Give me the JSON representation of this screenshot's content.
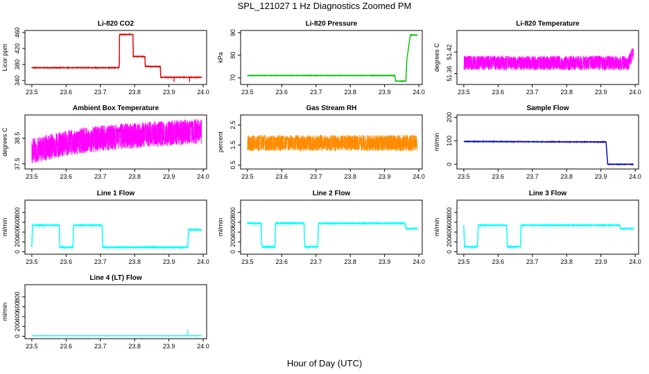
{
  "figure": {
    "title": "SPL_121027  1 Hz Diagnostics Zoomed PM",
    "xlabel": "Hour of Day (UTC)"
  },
  "chart_data": [
    {
      "type": "line",
      "title": "Li-820 CO2",
      "ylabel": "Licor ppm",
      "color": "#e00000",
      "xlim": [
        23.48,
        24.01
      ],
      "ylim": [
        330,
        465
      ],
      "xticks": [
        "23.5",
        "23.6",
        "23.7",
        "23.8",
        "23.9",
        "24.0"
      ],
      "yticks": [
        "340",
        "380",
        "420",
        "460"
      ],
      "series": [
        {
          "name": "CO2",
          "x": [
            23.5,
            23.755,
            23.756,
            23.795,
            23.796,
            23.83,
            23.831,
            23.875,
            23.876,
            23.995
          ],
          "y": [
            372,
            372,
            455,
            455,
            400,
            400,
            375,
            375,
            348,
            348
          ],
          "noise": 1,
          "spikes": [
            [
              23.915,
              336
            ],
            [
              23.96,
              336
            ]
          ]
        }
      ]
    },
    {
      "type": "line",
      "title": "Li-820 Pressure",
      "ylabel": "kPa",
      "color": "#00c800",
      "xlim": [
        23.48,
        24.01
      ],
      "ylim": [
        67,
        91
      ],
      "xticks": [
        "23.5",
        "23.6",
        "23.7",
        "23.8",
        "23.9",
        "24.0"
      ],
      "yticks": [
        "70",
        "80",
        "90"
      ],
      "series": [
        {
          "name": "Pressure",
          "x": [
            23.5,
            23.93,
            23.932,
            23.962,
            23.965,
            23.975,
            23.995
          ],
          "y": [
            71,
            71,
            68.5,
            68.5,
            78,
            89,
            89
          ],
          "noise": 0.15
        }
      ]
    },
    {
      "type": "line",
      "title": "Li-820 Temperature",
      "ylabel": "degrees C",
      "color": "#ff00ff",
      "xlim": [
        23.48,
        24.01
      ],
      "ylim": [
        51.33,
        51.48
      ],
      "xticks": [
        "23.5",
        "23.6",
        "23.7",
        "23.8",
        "23.9",
        "24.0"
      ],
      "yticks": [
        "51.36",
        "51.42"
      ],
      "series": [
        {
          "name": "Temperature",
          "x": [
            23.5,
            23.98,
            23.995
          ],
          "y": [
            51.39,
            51.39,
            51.42
          ],
          "noise": 0.02,
          "style": "dense"
        }
      ]
    },
    {
      "type": "line",
      "title": "Ambient Box Temperature",
      "ylabel": "degrees C",
      "color": "#ff00ff",
      "xlim": [
        23.48,
        24.01
      ],
      "ylim": [
        37.3,
        39.4
      ],
      "xticks": [
        "23.5",
        "23.6",
        "23.7",
        "23.8",
        "23.9",
        "24.0"
      ],
      "yticks": [
        "37.5",
        "38.5"
      ],
      "series": [
        {
          "name": "Ambient Temp",
          "x": [
            23.5,
            23.6,
            23.7,
            23.8,
            23.9,
            23.995
          ],
          "y": [
            38.0,
            38.3,
            38.5,
            38.6,
            38.7,
            38.75
          ],
          "noise": 0.5,
          "style": "dense"
        }
      ]
    },
    {
      "type": "line",
      "title": "Gas Stream RH",
      "ylabel": "percent",
      "color": "#ff8c00",
      "xlim": [
        23.48,
        24.01
      ],
      "ylim": [
        0.3,
        3.0
      ],
      "xticks": [
        "23.5",
        "23.6",
        "23.7",
        "23.8",
        "23.9",
        "24.0"
      ],
      "yticks": [
        "0.5",
        "1.5",
        "2.5"
      ],
      "series": [
        {
          "name": "RH",
          "x": [
            23.5,
            23.995
          ],
          "y": [
            1.6,
            1.6
          ],
          "noise": 0.4,
          "style": "dense"
        }
      ]
    },
    {
      "type": "line",
      "title": "Sample Flow",
      "ylabel": "ml/min",
      "color": "#0000cd",
      "xlim": [
        23.48,
        24.01
      ],
      "ylim": [
        -20,
        210
      ],
      "xticks": [
        "23.5",
        "23.6",
        "23.7",
        "23.8",
        "23.9",
        "24.0"
      ],
      "yticks": [
        "0",
        "100",
        "200"
      ],
      "series": [
        {
          "name": "Sample Flow",
          "x": [
            23.5,
            23.915,
            23.92,
            23.995
          ],
          "y": [
            97,
            95,
            0,
            0
          ],
          "noise": 1.5
        }
      ]
    },
    {
      "type": "line",
      "title": "Line 1 Flow",
      "ylabel": "ml/min",
      "color": "#00ffff",
      "xlim": [
        23.48,
        24.01
      ],
      "ylim": [
        -50,
        1050
      ],
      "xticks": [
        "23.5",
        "23.6",
        "23.7",
        "23.8",
        "23.9",
        "24.0"
      ],
      "yticks": [
        "0",
        "200",
        "400",
        "600",
        "800"
      ],
      "series": [
        {
          "name": "Line 1",
          "x": [
            23.5,
            23.502,
            23.58,
            23.582,
            23.62,
            23.622,
            23.705,
            23.707,
            23.955,
            23.957,
            23.995
          ],
          "y": [
            100,
            540,
            540,
            90,
            90,
            540,
            540,
            90,
            90,
            450,
            450
          ],
          "noise": 15
        }
      ]
    },
    {
      "type": "line",
      "title": "Line 2 Flow",
      "ylabel": "ml/min",
      "color": "#00ffff",
      "xlim": [
        23.48,
        24.01
      ],
      "ylim": [
        -50,
        1050
      ],
      "xticks": [
        "23.5",
        "23.6",
        "23.7",
        "23.8",
        "23.9",
        "24.0"
      ],
      "yticks": [
        "0",
        "200",
        "400",
        "600",
        "800"
      ],
      "series": [
        {
          "name": "Line 2",
          "x": [
            23.5,
            23.54,
            23.542,
            23.58,
            23.582,
            23.665,
            23.667,
            23.705,
            23.707,
            23.96,
            23.962,
            23.995
          ],
          "y": [
            580,
            580,
            100,
            100,
            580,
            580,
            100,
            100,
            580,
            580,
            470,
            470
          ],
          "noise": 15
        }
      ]
    },
    {
      "type": "line",
      "title": "Line 3 Flow",
      "ylabel": "ml/min",
      "color": "#00ffff",
      "xlim": [
        23.48,
        24.01
      ],
      "ylim": [
        -50,
        1050
      ],
      "xticks": [
        "23.5",
        "23.6",
        "23.7",
        "23.8",
        "23.9",
        "24.0"
      ],
      "yticks": [
        "0",
        "200",
        "400",
        "600",
        "800"
      ],
      "series": [
        {
          "name": "Line 3",
          "x": [
            23.5,
            23.502,
            23.54,
            23.542,
            23.625,
            23.627,
            23.665,
            23.667,
            23.955,
            23.957,
            23.995
          ],
          "y": [
            540,
            100,
            100,
            540,
            540,
            100,
            100,
            540,
            540,
            470,
            470
          ],
          "noise": 12
        }
      ]
    },
    {
      "type": "line",
      "title": "Line 4 (LT) Flow",
      "ylabel": "ml/min",
      "color": "#00ffff",
      "xlim": [
        23.48,
        24.01
      ],
      "ylim": [
        -50,
        1050
      ],
      "xticks": [
        "23.5",
        "23.6",
        "23.7",
        "23.8",
        "23.9",
        "24.0"
      ],
      "yticks": [
        "0",
        "200",
        "400",
        "600",
        "800"
      ],
      "series": [
        {
          "name": "Line 4",
          "x": [
            23.5,
            23.995
          ],
          "y": [
            10,
            10
          ],
          "noise": 2,
          "spikes": [
            [
              23.955,
              130
            ]
          ]
        }
      ]
    }
  ]
}
